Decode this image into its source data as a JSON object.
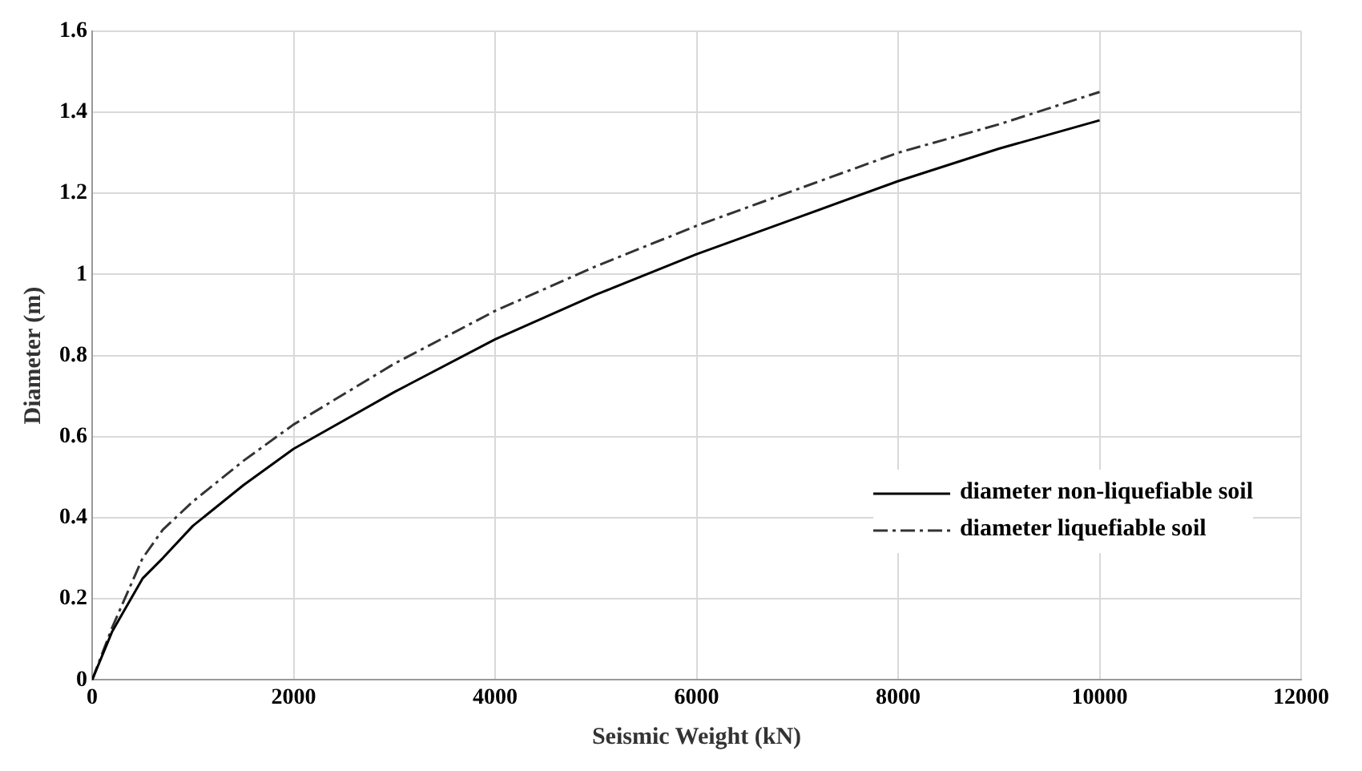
{
  "chart_data": {
    "type": "line",
    "xlabel": "Seismic Weight (kN)",
    "ylabel": "Diameter (m)",
    "xlim": [
      0,
      12000
    ],
    "xticks": [
      0,
      2000,
      4000,
      6000,
      8000,
      10000,
      12000
    ],
    "ylim": [
      0,
      1.6
    ],
    "yticks": [
      0,
      0.2,
      0.4,
      0.6,
      0.8,
      1,
      1.2,
      1.4,
      1.6
    ],
    "grid": true,
    "legend": "right",
    "marker": "none",
    "series": [
      {
        "name": "diameter non-liquefiable soil",
        "color": "#000000",
        "line_style": "solid",
        "x": [
          0,
          200,
          500,
          700,
          1000,
          1500,
          2000,
          3000,
          4000,
          5000,
          6000,
          7000,
          8000,
          9000,
          10000
        ],
        "values": [
          0,
          0.12,
          0.25,
          0.3,
          0.38,
          0.48,
          0.57,
          0.71,
          0.84,
          0.95,
          1.05,
          1.14,
          1.23,
          1.31,
          1.38
        ]
      },
      {
        "name": "diameter liquefiable soil",
        "color": "#333333",
        "line_style": "dashed",
        "x": [
          0,
          200,
          500,
          700,
          1000,
          1500,
          2000,
          3000,
          4000,
          5000,
          6000,
          7000,
          8000,
          9000,
          10000
        ],
        "values": [
          0,
          0.13,
          0.3,
          0.37,
          0.44,
          0.54,
          0.63,
          0.78,
          0.91,
          1.02,
          1.12,
          1.21,
          1.3,
          1.37,
          1.45
        ]
      }
    ]
  }
}
